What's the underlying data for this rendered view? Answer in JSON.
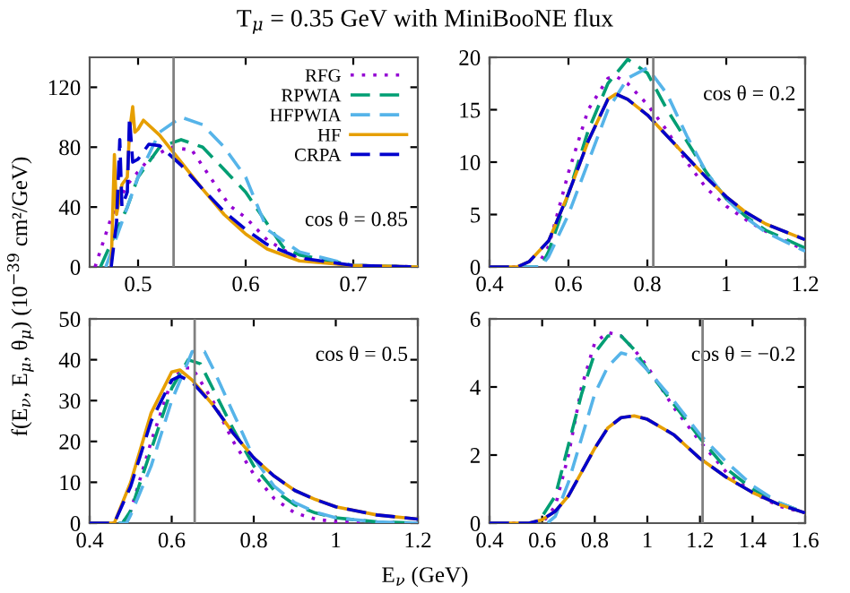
{
  "chart_data": [
    {
      "type": "line",
      "title": "T$_{μ}$ = 0.35 GeV with MiniBooNE flux",
      "ylabel": "f(E$_{ν}$, E$_{μ}$, θ$_{μ}$) (10$^{−39}$ cm²/GeV)",
      "annotations": [
        "cos θ = 0.85"
      ],
      "legend": "top right",
      "xlim": [
        0.455,
        0.76
      ],
      "xticks": [
        0.5,
        0.6,
        0.7
      ],
      "ylim": [
        0,
        140
      ],
      "yticks": [
        0,
        40,
        80,
        120
      ],
      "ref_lines": [
        {
          "axis": "x",
          "value": 0.533,
          "color": "#808080"
        }
      ],
      "series": [
        {
          "name": "RFG",
          "color": "#9400d3",
          "line_style": "dotted",
          "x": [
            0.46,
            0.475,
            0.49,
            0.51,
            0.53,
            0.55,
            0.585,
            0.6,
            0.62,
            0.65,
            0.7,
            0.76
          ],
          "values": [
            0,
            33,
            55,
            72,
            80,
            78,
            41,
            33,
            18,
            5,
            1,
            0
          ]
        },
        {
          "name": "RPWIA",
          "color": "#009e73",
          "line_style": "dashed",
          "x": [
            0.465,
            0.49,
            0.5,
            0.52,
            0.54,
            0.56,
            0.6,
            0.635,
            0.65,
            0.7,
            0.76
          ],
          "values": [
            0,
            40,
            60,
            80,
            85,
            80,
            50,
            13,
            8,
            1,
            0
          ]
        },
        {
          "name": "HFPWIA",
          "color": "#56b4e9",
          "line_style": "dashed",
          "x": [
            0.47,
            0.5,
            0.52,
            0.54,
            0.56,
            0.58,
            0.6,
            0.62,
            0.65,
            0.7,
            0.76
          ],
          "values": [
            0,
            60,
            90,
            100,
            95,
            80,
            60,
            25,
            10,
            1,
            0
          ]
        },
        {
          "name": "HF",
          "color": "#e69f00",
          "line_style": "solid",
          "x": [
            0.475,
            0.478,
            0.48,
            0.485,
            0.49,
            0.492,
            0.495,
            0.497,
            0.5,
            0.505,
            0.52,
            0.54,
            0.56,
            0.58,
            0.6,
            0.62,
            0.65,
            0.7,
            0.76
          ],
          "values": [
            0,
            75,
            35,
            55,
            60,
            90,
            107,
            90,
            92,
            98,
            88,
            70,
            52,
            35,
            22,
            12,
            4,
            1,
            0
          ]
        },
        {
          "name": "CRPA",
          "color": "#0000cd",
          "line_style": "dashed",
          "x": [
            0.475,
            0.48,
            0.483,
            0.485,
            0.49,
            0.492,
            0.495,
            0.5,
            0.51,
            0.52,
            0.54,
            0.56,
            0.58,
            0.6,
            0.62,
            0.65,
            0.7,
            0.76
          ],
          "values": [
            0,
            30,
            85,
            40,
            50,
            100,
            70,
            72,
            82,
            81,
            68,
            52,
            37,
            25,
            15,
            6,
            1,
            0
          ]
        }
      ]
    },
    {
      "type": "line",
      "annotations": [
        "cos θ = 0.2"
      ],
      "xlim": [
        0.4,
        1.2
      ],
      "xticks": [
        0.4,
        0.6,
        0.8,
        1,
        1.2
      ],
      "ylim": [
        0,
        20
      ],
      "yticks": [
        0,
        5,
        10,
        15,
        20
      ],
      "ref_lines": [
        {
          "axis": "x",
          "value": 0.815,
          "color": "#808080"
        }
      ],
      "series": [
        {
          "color": "#9400d3",
          "line_style": "dotted",
          "x": [
            0.4,
            0.52,
            0.55,
            0.6,
            0.65,
            0.7,
            0.72,
            0.75,
            0.8,
            0.85,
            0.9,
            0.95,
            1.0,
            1.05,
            1.1,
            1.2
          ],
          "values": [
            0,
            0,
            2,
            9,
            15,
            18,
            18.2,
            17.5,
            15.5,
            13,
            10,
            7.5,
            5.8,
            4.5,
            3.4,
            1.6
          ]
        },
        {
          "color": "#009e73",
          "line_style": "dashed",
          "x": [
            0.4,
            0.53,
            0.55,
            0.6,
            0.65,
            0.7,
            0.75,
            0.8,
            0.85,
            0.9,
            0.95,
            1.0,
            1.05,
            1.1,
            1.2
          ],
          "values": [
            0,
            0,
            1.5,
            7,
            13,
            17.5,
            19.8,
            18.5,
            15,
            12,
            9,
            6.5,
            4.8,
            3.5,
            1.8
          ]
        },
        {
          "color": "#56b4e9",
          "line_style": "dashed",
          "x": [
            0.4,
            0.53,
            0.55,
            0.6,
            0.65,
            0.7,
            0.75,
            0.8,
            0.85,
            0.9,
            0.95,
            1.0,
            1.05,
            1.1,
            1.2
          ],
          "values": [
            0,
            0,
            1,
            5,
            10,
            15,
            18,
            19,
            16.5,
            12.5,
            9,
            6.5,
            4.7,
            3.3,
            1.5
          ]
        },
        {
          "color": "#e69f00",
          "line_style": "solid",
          "x": [
            0.4,
            0.47,
            0.5,
            0.55,
            0.6,
            0.65,
            0.7,
            0.72,
            0.75,
            0.8,
            0.85,
            0.9,
            0.95,
            1.0,
            1.05,
            1.1,
            1.2
          ],
          "values": [
            0,
            0,
            0.5,
            2.5,
            7,
            12,
            16,
            16.5,
            16,
            14.5,
            12.5,
            10.5,
            8.5,
            6.7,
            5.2,
            4.1,
            2.6
          ]
        },
        {
          "color": "#0000cd",
          "line_style": "dashed",
          "x": [
            0.4,
            0.47,
            0.5,
            0.55,
            0.6,
            0.65,
            0.7,
            0.72,
            0.75,
            0.8,
            0.85,
            0.9,
            0.95,
            1.0,
            1.05,
            1.1,
            1.2
          ],
          "values": [
            0,
            0,
            0.5,
            2.5,
            7,
            12,
            16,
            16.5,
            16,
            14.5,
            12.5,
            10.5,
            8.5,
            6.7,
            5.2,
            4.1,
            2.6
          ]
        }
      ]
    },
    {
      "type": "line",
      "annotations": [
        "cos θ = 0.5"
      ],
      "xlabel": "E$_{ν}$ (GeV)",
      "xlim": [
        0.4,
        1.2
      ],
      "xticks": [
        0.4,
        0.6,
        0.8,
        1,
        1.2
      ],
      "ylim": [
        0,
        50
      ],
      "yticks": [
        0,
        10,
        20,
        30,
        40,
        50
      ],
      "ref_lines": [
        {
          "axis": "x",
          "value": 0.656,
          "color": "#808080"
        }
      ],
      "series": [
        {
          "color": "#9400d3",
          "line_style": "dotted",
          "x": [
            0.4,
            0.48,
            0.5,
            0.55,
            0.6,
            0.63,
            0.65,
            0.7,
            0.75,
            0.8,
            0.85,
            0.9,
            0.95,
            1.0,
            1.2
          ],
          "values": [
            0,
            0,
            3,
            20,
            35,
            38,
            38,
            30,
            20,
            12,
            6,
            2.5,
            1,
            0.3,
            0
          ]
        },
        {
          "color": "#009e73",
          "line_style": "dashed",
          "x": [
            0.4,
            0.48,
            0.5,
            0.55,
            0.6,
            0.64,
            0.67,
            0.7,
            0.75,
            0.8,
            0.85,
            0.9,
            0.95,
            1.0,
            1.1,
            1.2
          ],
          "values": [
            0,
            0,
            3,
            18,
            33,
            40,
            39,
            33,
            23,
            14,
            8,
            4.5,
            2.5,
            1.3,
            0.3,
            0
          ]
        },
        {
          "color": "#56b4e9",
          "line_style": "dashed",
          "x": [
            0.4,
            0.49,
            0.5,
            0.55,
            0.6,
            0.65,
            0.68,
            0.7,
            0.75,
            0.8,
            0.85,
            0.9,
            0.95,
            1.0,
            1.1,
            1.2
          ],
          "values": [
            0,
            0,
            2,
            14,
            30,
            42,
            42,
            38,
            27,
            16,
            9,
            5,
            2.7,
            1.3,
            0.3,
            0
          ]
        },
        {
          "color": "#e69f00",
          "line_style": "solid",
          "x": [
            0.4,
            0.46,
            0.5,
            0.55,
            0.6,
            0.62,
            0.65,
            0.7,
            0.75,
            0.8,
            0.85,
            0.9,
            0.95,
            1.0,
            1.1,
            1.2
          ],
          "values": [
            0,
            0,
            10,
            27,
            37,
            37.5,
            35,
            29,
            22,
            16,
            11.5,
            8,
            5.8,
            4,
            2,
            1
          ]
        },
        {
          "color": "#0000cd",
          "line_style": "dashed",
          "x": [
            0.4,
            0.46,
            0.5,
            0.55,
            0.6,
            0.62,
            0.65,
            0.7,
            0.75,
            0.8,
            0.85,
            0.9,
            0.95,
            1.0,
            1.1,
            1.2
          ],
          "values": [
            0,
            0,
            9,
            25,
            35,
            36,
            34.5,
            29,
            22,
            16,
            11.5,
            8,
            5.8,
            4,
            2,
            1
          ]
        }
      ]
    },
    {
      "type": "line",
      "annotations": [
        "cos θ = −0.2"
      ],
      "xlim": [
        0.4,
        1.6
      ],
      "xticks": [
        0.4,
        0.6,
        0.8,
        1,
        1.2,
        1.4,
        1.6
      ],
      "ylim": [
        0,
        6
      ],
      "yticks": [
        0,
        2,
        4,
        6
      ],
      "ref_lines": [
        {
          "axis": "x",
          "value": 1.21,
          "color": "#808080"
        }
      ],
      "series": [
        {
          "color": "#9400d3",
          "line_style": "dotted",
          "x": [
            0.4,
            0.6,
            0.65,
            0.7,
            0.75,
            0.8,
            0.85,
            0.9,
            0.95,
            1.0,
            1.1,
            1.2,
            1.3,
            1.4,
            1.5,
            1.6
          ],
          "values": [
            0,
            0,
            0.5,
            2,
            4,
            5.3,
            5.6,
            5.5,
            5.1,
            4.6,
            3.4,
            2.4,
            1.5,
            0.9,
            0.5,
            0.3
          ]
        },
        {
          "color": "#009e73",
          "line_style": "dashed",
          "x": [
            0.4,
            0.58,
            0.6,
            0.65,
            0.7,
            0.75,
            0.8,
            0.85,
            0.9,
            0.95,
            1.0,
            1.1,
            1.2,
            1.3,
            1.4,
            1.5,
            1.6
          ],
          "values": [
            0,
            0,
            0.2,
            0.8,
            2.3,
            3.8,
            5.0,
            5.5,
            5.5,
            5.1,
            4.5,
            3.5,
            2.5,
            1.6,
            1.0,
            0.6,
            0.3
          ]
        },
        {
          "color": "#56b4e9",
          "line_style": "dashed",
          "x": [
            0.4,
            0.62,
            0.65,
            0.7,
            0.75,
            0.8,
            0.85,
            0.9,
            0.95,
            1.0,
            1.1,
            1.2,
            1.3,
            1.4,
            1.5,
            1.6
          ],
          "values": [
            0,
            0,
            0.2,
            1.2,
            2.5,
            3.8,
            4.6,
            5.0,
            4.9,
            4.5,
            3.6,
            2.6,
            1.8,
            1.1,
            0.6,
            0.3
          ]
        },
        {
          "color": "#e69f00",
          "line_style": "solid",
          "x": [
            0.4,
            0.55,
            0.6,
            0.65,
            0.7,
            0.75,
            0.8,
            0.85,
            0.9,
            0.95,
            1.0,
            1.1,
            1.2,
            1.3,
            1.4,
            1.5,
            1.6
          ],
          "values": [
            0,
            0,
            0.1,
            0.35,
            0.8,
            1.5,
            2.2,
            2.8,
            3.1,
            3.15,
            3.05,
            2.6,
            1.9,
            1.35,
            0.9,
            0.55,
            0.3
          ]
        },
        {
          "color": "#0000cd",
          "line_style": "dashed",
          "x": [
            0.4,
            0.55,
            0.6,
            0.65,
            0.7,
            0.75,
            0.8,
            0.85,
            0.9,
            0.95,
            1.0,
            1.1,
            1.2,
            1.3,
            1.4,
            1.5,
            1.6
          ],
          "values": [
            0,
            0,
            0.1,
            0.35,
            0.8,
            1.5,
            2.2,
            2.8,
            3.1,
            3.15,
            3.05,
            2.6,
            1.9,
            1.35,
            0.9,
            0.55,
            0.3
          ]
        }
      ]
    }
  ]
}
